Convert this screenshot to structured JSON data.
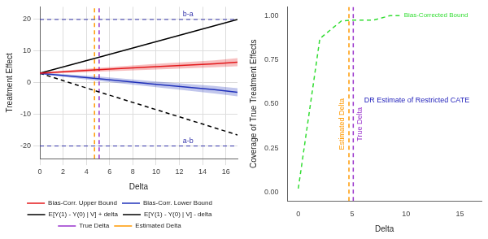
{
  "chart_data": [
    {
      "type": "line",
      "x_label": "Delta",
      "y_label": "Treatment Effect",
      "xlim": [
        0,
        17
      ],
      "xticks": [
        0,
        2,
        4,
        6,
        8,
        10,
        12,
        14,
        16
      ],
      "ylim": [
        -24,
        24
      ],
      "yticks": [
        -20,
        -10,
        0,
        10,
        20
      ],
      "grid": true,
      "legend": "bottom",
      "x": [
        0,
        5,
        10,
        15,
        17
      ],
      "series": [
        {
          "name": "Bias-Corr. Upper Bound",
          "color": "#e41a1c",
          "line_style": "solid",
          "values": [
            3,
            4.1,
            5.1,
            6,
            6.5
          ],
          "lower": [
            2.8,
            3.5,
            4.2,
            4.9,
            5.2
          ],
          "upper": [
            3.2,
            4.7,
            6,
            7.1,
            7.8
          ]
        },
        {
          "name": "Bias-Corr. Lower Bound",
          "color": "#2233bb",
          "line_style": "solid",
          "values": [
            3,
            1.3,
            -0.5,
            -2.2,
            -3
          ],
          "lower": [
            2.8,
            0.6,
            -1.4,
            -3.4,
            -4.3
          ],
          "upper": [
            3.2,
            2,
            0.4,
            -1,
            -1.7
          ]
        },
        {
          "name": "E[Y(1) - Y(0) | V] + delta",
          "color": "#000000",
          "line_style": "solid",
          "values": [
            3,
            8,
            13,
            18,
            20
          ]
        },
        {
          "name": "E[Y(1) - Y(0) | V] - delta",
          "color": "#000000",
          "line_style": "dashed",
          "values": [
            3,
            -2.8,
            -8.5,
            -14.2,
            -16.5
          ]
        }
      ],
      "hlines": [
        {
          "value": 20,
          "label": "b-a",
          "color": "#3333aa",
          "line_style": "dashed"
        },
        {
          "value": -20,
          "label": "a-b",
          "color": "#3333aa",
          "line_style": "dashed"
        }
      ],
      "vlines": [
        {
          "value": 5.1,
          "name": "True Delta",
          "color": "#9933cc",
          "line_style": "dashed"
        },
        {
          "value": 4.7,
          "name": "Estimated Delta",
          "color": "#ff9900",
          "line_style": "dashed"
        }
      ]
    },
    {
      "type": "line",
      "x_label": "Delta",
      "y_label": "Coverage of True Treatment Effects",
      "xlim": [
        -1,
        17
      ],
      "xticks": [
        0,
        5,
        10,
        15
      ],
      "ylim": [
        -0.05,
        1.05
      ],
      "yticks": [
        {
          "value": 0,
          "label": "0.00"
        },
        {
          "value": 0.25,
          "label": "0.25"
        },
        {
          "value": 0.5,
          "label": "0.50"
        },
        {
          "value": 0.75,
          "label": "0.75"
        },
        {
          "value": 1,
          "label": "1.00"
        }
      ],
      "grid": false,
      "x": [
        0,
        2,
        4,
        5,
        7,
        8.5,
        9.5
      ],
      "series": [
        {
          "name": "Bias-Corrected Bound",
          "color": "#33dd33",
          "line_style": "dashed",
          "values": [
            0.02,
            0.87,
            0.97,
            0.975,
            0.975,
            1,
            1
          ]
        }
      ],
      "annotations": [
        {
          "text": "DR Estimate of Restricted CATE",
          "x": 11,
          "y": 0.52,
          "color": "#2222bb"
        }
      ],
      "vlines": [
        {
          "value": 5.1,
          "name": "True Delta",
          "color": "#9933cc",
          "line_style": "dashed"
        },
        {
          "value": 4.7,
          "name": "Estimated Delta",
          "color": "#ff9900",
          "line_style": "dashed"
        }
      ]
    }
  ]
}
